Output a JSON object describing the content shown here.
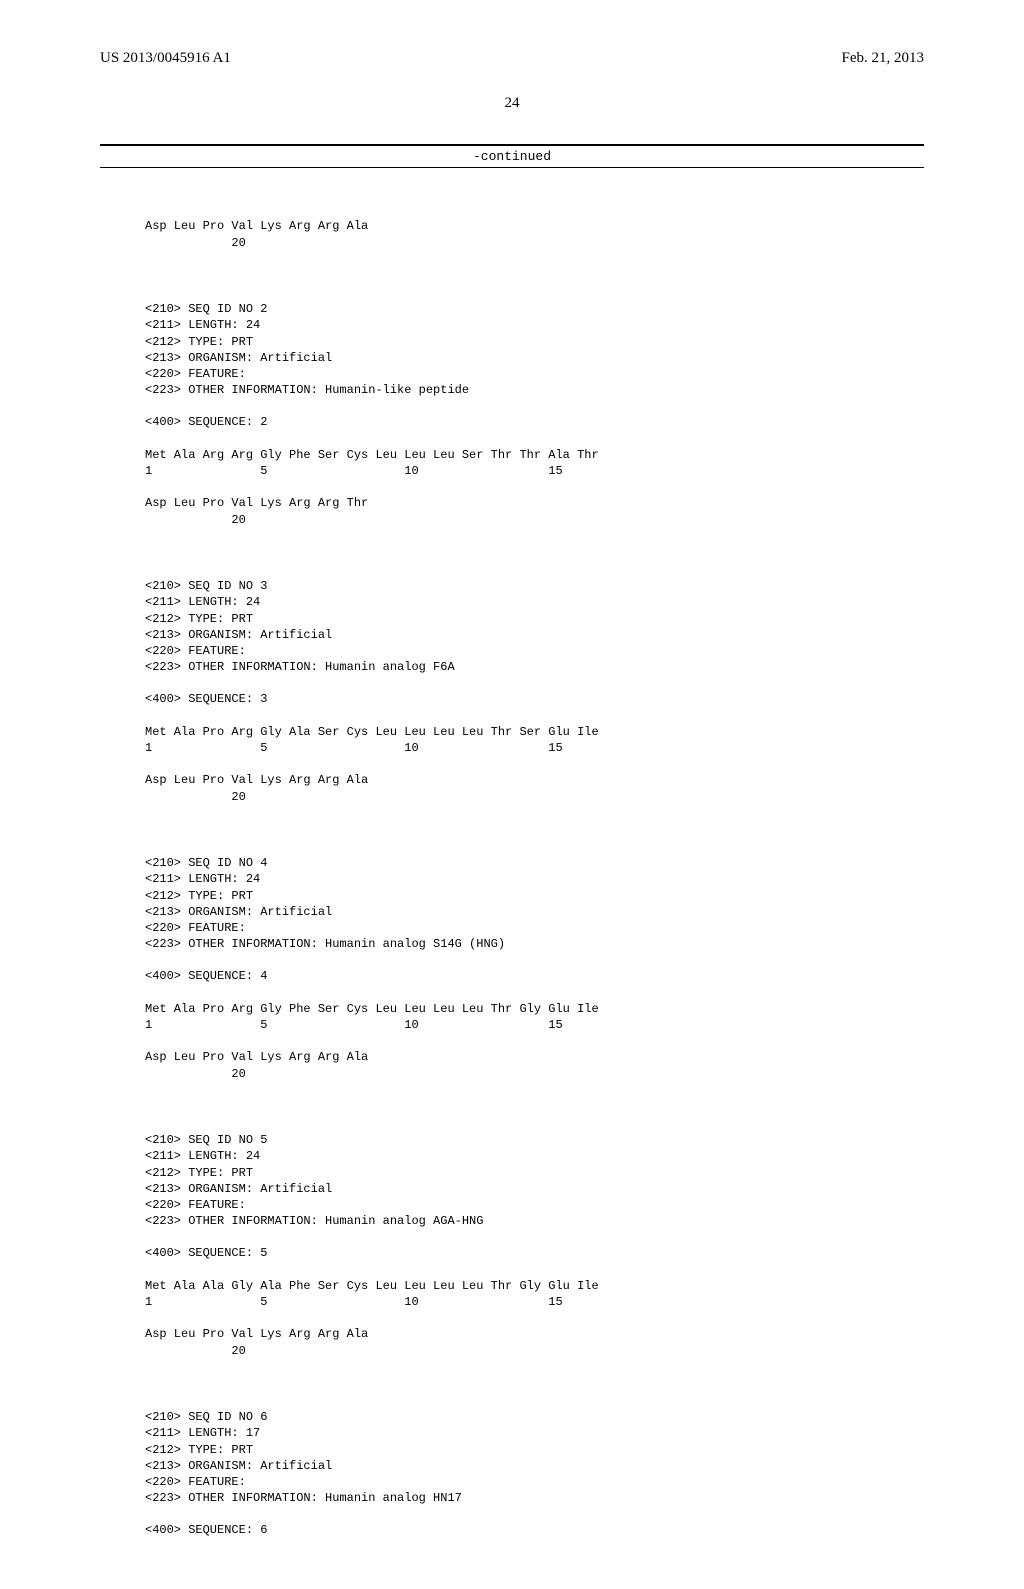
{
  "header": {
    "pub_number": "US 2013/0045916 A1",
    "pub_date": "Feb. 21, 2013",
    "page_num": "24",
    "continued": "-continued"
  },
  "blocks": [
    {
      "lines": [
        "Asp Leu Pro Val Lys Arg Arg Ala",
        "            20"
      ]
    },
    {
      "lines": [
        "<210> SEQ ID NO 2",
        "<211> LENGTH: 24",
        "<212> TYPE: PRT",
        "<213> ORGANISM: Artificial",
        "<220> FEATURE:",
        "<223> OTHER INFORMATION: Humanin-like peptide",
        "",
        "<400> SEQUENCE: 2",
        "",
        "Met Ala Arg Arg Gly Phe Ser Cys Leu Leu Leu Ser Thr Thr Ala Thr",
        "1               5                   10                  15",
        "",
        "Asp Leu Pro Val Lys Arg Arg Thr",
        "            20"
      ]
    },
    {
      "lines": [
        "<210> SEQ ID NO 3",
        "<211> LENGTH: 24",
        "<212> TYPE: PRT",
        "<213> ORGANISM: Artificial",
        "<220> FEATURE:",
        "<223> OTHER INFORMATION: Humanin analog F6A",
        "",
        "<400> SEQUENCE: 3",
        "",
        "Met Ala Pro Arg Gly Ala Ser Cys Leu Leu Leu Leu Thr Ser Glu Ile",
        "1               5                   10                  15",
        "",
        "Asp Leu Pro Val Lys Arg Arg Ala",
        "            20"
      ]
    },
    {
      "lines": [
        "<210> SEQ ID NO 4",
        "<211> LENGTH: 24",
        "<212> TYPE: PRT",
        "<213> ORGANISM: Artificial",
        "<220> FEATURE:",
        "<223> OTHER INFORMATION: Humanin analog S14G (HNG)",
        "",
        "<400> SEQUENCE: 4",
        "",
        "Met Ala Pro Arg Gly Phe Ser Cys Leu Leu Leu Leu Thr Gly Glu Ile",
        "1               5                   10                  15",
        "",
        "Asp Leu Pro Val Lys Arg Arg Ala",
        "            20"
      ]
    },
    {
      "lines": [
        "<210> SEQ ID NO 5",
        "<211> LENGTH: 24",
        "<212> TYPE: PRT",
        "<213> ORGANISM: Artificial",
        "<220> FEATURE:",
        "<223> OTHER INFORMATION: Humanin analog AGA-HNG",
        "",
        "<400> SEQUENCE: 5",
        "",
        "Met Ala Ala Gly Ala Phe Ser Cys Leu Leu Leu Leu Thr Gly Glu Ile",
        "1               5                   10                  15",
        "",
        "Asp Leu Pro Val Lys Arg Arg Ala",
        "            20"
      ]
    },
    {
      "lines": [
        "<210> SEQ ID NO 6",
        "<211> LENGTH: 17",
        "<212> TYPE: PRT",
        "<213> ORGANISM: Artificial",
        "<220> FEATURE:",
        "<223> OTHER INFORMATION: Humanin analog HN17",
        "",
        "<400> SEQUENCE: 6"
      ]
    }
  ]
}
